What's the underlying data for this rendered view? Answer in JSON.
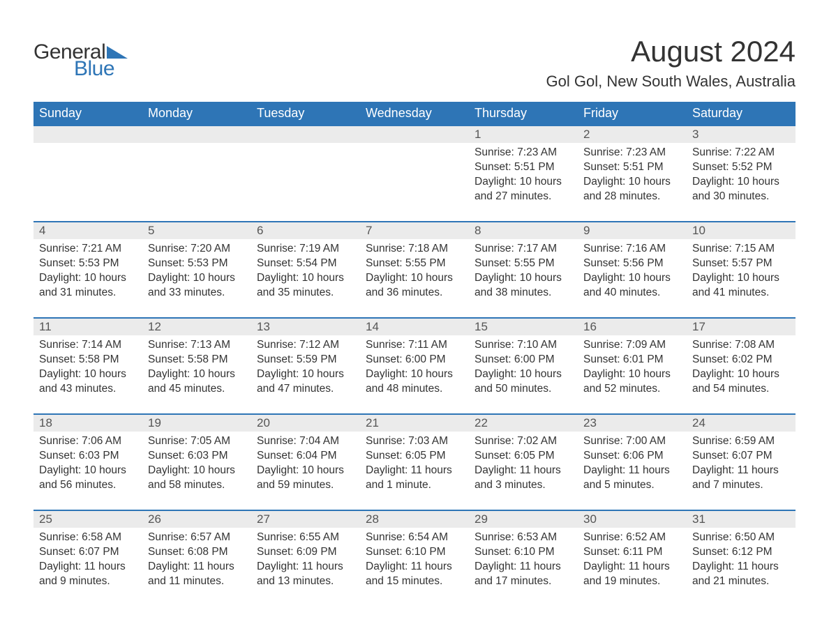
{
  "logo": {
    "text_general": "General",
    "text_blue": "Blue",
    "triangle_color": "#2e75b6"
  },
  "title": "August 2024",
  "location": "Gol Gol, New South Wales, Australia",
  "colors": {
    "header_bg": "#2e75b6",
    "header_text": "#ffffff",
    "daynum_bg": "#ebebeb",
    "daynum_border": "#2e75b6",
    "body_text": "#333333"
  },
  "weekdays": [
    "Sunday",
    "Monday",
    "Tuesday",
    "Wednesday",
    "Thursday",
    "Friday",
    "Saturday"
  ],
  "weeks": [
    [
      null,
      null,
      null,
      null,
      {
        "day": "1",
        "sunrise": "7:23 AM",
        "sunset": "5:51 PM",
        "daylight": "10 hours and 27 minutes."
      },
      {
        "day": "2",
        "sunrise": "7:23 AM",
        "sunset": "5:51 PM",
        "daylight": "10 hours and 28 minutes."
      },
      {
        "day": "3",
        "sunrise": "7:22 AM",
        "sunset": "5:52 PM",
        "daylight": "10 hours and 30 minutes."
      }
    ],
    [
      {
        "day": "4",
        "sunrise": "7:21 AM",
        "sunset": "5:53 PM",
        "daylight": "10 hours and 31 minutes."
      },
      {
        "day": "5",
        "sunrise": "7:20 AM",
        "sunset": "5:53 PM",
        "daylight": "10 hours and 33 minutes."
      },
      {
        "day": "6",
        "sunrise": "7:19 AM",
        "sunset": "5:54 PM",
        "daylight": "10 hours and 35 minutes."
      },
      {
        "day": "7",
        "sunrise": "7:18 AM",
        "sunset": "5:55 PM",
        "daylight": "10 hours and 36 minutes."
      },
      {
        "day": "8",
        "sunrise": "7:17 AM",
        "sunset": "5:55 PM",
        "daylight": "10 hours and 38 minutes."
      },
      {
        "day": "9",
        "sunrise": "7:16 AM",
        "sunset": "5:56 PM",
        "daylight": "10 hours and 40 minutes."
      },
      {
        "day": "10",
        "sunrise": "7:15 AM",
        "sunset": "5:57 PM",
        "daylight": "10 hours and 41 minutes."
      }
    ],
    [
      {
        "day": "11",
        "sunrise": "7:14 AM",
        "sunset": "5:58 PM",
        "daylight": "10 hours and 43 minutes."
      },
      {
        "day": "12",
        "sunrise": "7:13 AM",
        "sunset": "5:58 PM",
        "daylight": "10 hours and 45 minutes."
      },
      {
        "day": "13",
        "sunrise": "7:12 AM",
        "sunset": "5:59 PM",
        "daylight": "10 hours and 47 minutes."
      },
      {
        "day": "14",
        "sunrise": "7:11 AM",
        "sunset": "6:00 PM",
        "daylight": "10 hours and 48 minutes."
      },
      {
        "day": "15",
        "sunrise": "7:10 AM",
        "sunset": "6:00 PM",
        "daylight": "10 hours and 50 minutes."
      },
      {
        "day": "16",
        "sunrise": "7:09 AM",
        "sunset": "6:01 PM",
        "daylight": "10 hours and 52 minutes."
      },
      {
        "day": "17",
        "sunrise": "7:08 AM",
        "sunset": "6:02 PM",
        "daylight": "10 hours and 54 minutes."
      }
    ],
    [
      {
        "day": "18",
        "sunrise": "7:06 AM",
        "sunset": "6:03 PM",
        "daylight": "10 hours and 56 minutes."
      },
      {
        "day": "19",
        "sunrise": "7:05 AM",
        "sunset": "6:03 PM",
        "daylight": "10 hours and 58 minutes."
      },
      {
        "day": "20",
        "sunrise": "7:04 AM",
        "sunset": "6:04 PM",
        "daylight": "10 hours and 59 minutes."
      },
      {
        "day": "21",
        "sunrise": "7:03 AM",
        "sunset": "6:05 PM",
        "daylight": "11 hours and 1 minute."
      },
      {
        "day": "22",
        "sunrise": "7:02 AM",
        "sunset": "6:05 PM",
        "daylight": "11 hours and 3 minutes."
      },
      {
        "day": "23",
        "sunrise": "7:00 AM",
        "sunset": "6:06 PM",
        "daylight": "11 hours and 5 minutes."
      },
      {
        "day": "24",
        "sunrise": "6:59 AM",
        "sunset": "6:07 PM",
        "daylight": "11 hours and 7 minutes."
      }
    ],
    [
      {
        "day": "25",
        "sunrise": "6:58 AM",
        "sunset": "6:07 PM",
        "daylight": "11 hours and 9 minutes."
      },
      {
        "day": "26",
        "sunrise": "6:57 AM",
        "sunset": "6:08 PM",
        "daylight": "11 hours and 11 minutes."
      },
      {
        "day": "27",
        "sunrise": "6:55 AM",
        "sunset": "6:09 PM",
        "daylight": "11 hours and 13 minutes."
      },
      {
        "day": "28",
        "sunrise": "6:54 AM",
        "sunset": "6:10 PM",
        "daylight": "11 hours and 15 minutes."
      },
      {
        "day": "29",
        "sunrise": "6:53 AM",
        "sunset": "6:10 PM",
        "daylight": "11 hours and 17 minutes."
      },
      {
        "day": "30",
        "sunrise": "6:52 AM",
        "sunset": "6:11 PM",
        "daylight": "11 hours and 19 minutes."
      },
      {
        "day": "31",
        "sunrise": "6:50 AM",
        "sunset": "6:12 PM",
        "daylight": "11 hours and 21 minutes."
      }
    ]
  ],
  "labels": {
    "sunrise": "Sunrise: ",
    "sunset": "Sunset: ",
    "daylight": "Daylight: "
  }
}
